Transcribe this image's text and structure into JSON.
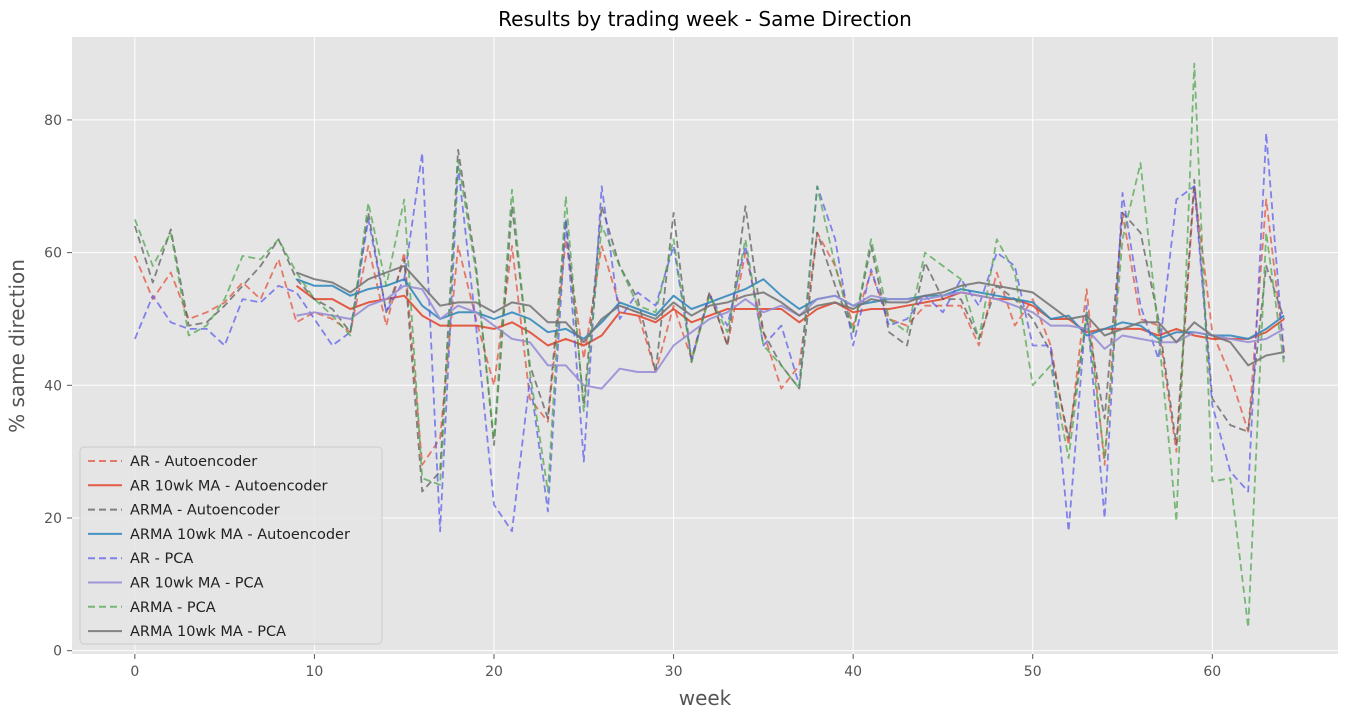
{
  "chart_data": {
    "type": "line",
    "title": "Results by trading week - Same Direction",
    "xlabel": "week",
    "ylabel": "% same direction",
    "xlim": [
      -3.5,
      67
    ],
    "ylim": [
      -0.5,
      92.5
    ],
    "xticks": [
      0,
      10,
      20,
      30,
      40,
      50,
      60
    ],
    "yticks": [
      0,
      20,
      40,
      60,
      80
    ],
    "grid": true,
    "legend_position": "lower-left",
    "series": [
      {
        "name": "AR - Autoencoder",
        "style": "dashed",
        "color": "#e24a33",
        "x": [
          0,
          1,
          2,
          3,
          4,
          5,
          6,
          7,
          8,
          9,
          10,
          11,
          12,
          13,
          14,
          15,
          16,
          17,
          18,
          19,
          20,
          21,
          22,
          23,
          24,
          25,
          26,
          27,
          28,
          29,
          30,
          31,
          32,
          33,
          34,
          35,
          36,
          37,
          38,
          39,
          40,
          41,
          42,
          43,
          44,
          45,
          46,
          47,
          48,
          49,
          50,
          51,
          52,
          53,
          54,
          55,
          56,
          57,
          58,
          59,
          60,
          61,
          62,
          63,
          64
        ],
        "values": [
          59.5,
          53,
          57,
          50,
          51,
          52.5,
          55.5,
          53,
          59,
          49.5,
          51,
          50,
          48,
          61,
          49,
          60,
          28,
          32,
          61,
          50,
          40,
          61,
          38,
          34.5,
          62,
          44,
          61,
          52,
          51,
          42,
          52,
          44,
          54,
          46,
          60,
          48,
          39.5,
          43,
          63,
          58,
          49,
          57,
          50,
          49,
          52,
          52,
          52,
          46,
          57,
          49,
          53,
          46,
          31,
          54.5,
          28,
          66,
          50,
          49,
          30,
          70,
          48,
          41.5,
          33,
          68,
          45
        ]
      },
      {
        "name": "AR 10wk MA - Autoencoder",
        "style": "solid",
        "color": "#e24a33",
        "x": [
          9,
          10,
          11,
          12,
          13,
          14,
          15,
          16,
          17,
          18,
          19,
          20,
          21,
          22,
          23,
          24,
          25,
          26,
          27,
          28,
          29,
          30,
          31,
          32,
          33,
          34,
          35,
          36,
          37,
          38,
          39,
          40,
          41,
          42,
          43,
          44,
          45,
          46,
          47,
          48,
          49,
          50,
          51,
          52,
          53,
          54,
          55,
          56,
          57,
          58,
          59,
          60,
          61,
          62,
          63,
          64
        ],
        "values": [
          55,
          53,
          53,
          51.5,
          52.5,
          53,
          53.5,
          50.5,
          49,
          49,
          49,
          48.5,
          49.5,
          48,
          46,
          47,
          46,
          47.5,
          51,
          50.5,
          49.5,
          51.5,
          49.5,
          50.5,
          51.5,
          51.5,
          51.5,
          51.5,
          49.5,
          51.5,
          52.5,
          51,
          51.5,
          51.5,
          52,
          52.5,
          53,
          54,
          53.5,
          53,
          53,
          52,
          50,
          50,
          48,
          48.5,
          48.5,
          48.5,
          47.5,
          48.5,
          47.5,
          47,
          47,
          47,
          48,
          50
        ]
      },
      {
        "name": "ARMA - Autoencoder",
        "style": "dashed",
        "color": "#555555",
        "x": [
          0,
          1,
          2,
          3,
          4,
          5,
          6,
          7,
          8,
          9,
          10,
          11,
          12,
          13,
          14,
          15,
          16,
          17,
          18,
          19,
          20,
          21,
          22,
          23,
          24,
          25,
          26,
          27,
          28,
          29,
          30,
          31,
          32,
          33,
          34,
          35,
          36,
          37,
          38,
          39,
          40,
          41,
          42,
          43,
          44,
          45,
          46,
          47,
          48,
          49,
          50,
          51,
          52,
          53,
          54,
          55,
          56,
          57,
          58,
          59,
          60,
          61,
          62,
          63,
          64
        ],
        "values": [
          64,
          55.5,
          63.5,
          49,
          49.5,
          52,
          55,
          58,
          62,
          56,
          53,
          51.5,
          48,
          66,
          51,
          59,
          24,
          27,
          75.5,
          58,
          31,
          67,
          43,
          35,
          65,
          37,
          67,
          58,
          53,
          42,
          66,
          43.5,
          54,
          46,
          67,
          48,
          43,
          39.5,
          63,
          55,
          48,
          61,
          48,
          46,
          58.5,
          53,
          53,
          47,
          55,
          53,
          50,
          45,
          32,
          50,
          35,
          66,
          63,
          50,
          31,
          71,
          38,
          34,
          33,
          58,
          50
        ]
      },
      {
        "name": "ARMA 10wk MA - Autoencoder",
        "style": "solid",
        "color": "#348abd",
        "x": [
          9,
          10,
          11,
          12,
          13,
          14,
          15,
          16,
          17,
          18,
          19,
          20,
          21,
          22,
          23,
          24,
          25,
          26,
          27,
          28,
          29,
          30,
          31,
          32,
          33,
          34,
          35,
          36,
          37,
          38,
          39,
          40,
          41,
          42,
          43,
          44,
          45,
          46,
          47,
          48,
          49,
          50,
          51,
          52,
          53,
          54,
          55,
          56,
          57,
          58,
          59,
          60,
          61,
          62,
          63,
          64
        ],
        "values": [
          56,
          55,
          55,
          53.5,
          54.5,
          55,
          56,
          52,
          50,
          51,
          51,
          50,
          51,
          50,
          48,
          48.5,
          47,
          49.5,
          52.5,
          51.5,
          50.5,
          53.5,
          51.5,
          52.5,
          53.5,
          54.5,
          56,
          53.5,
          51.5,
          53,
          53.5,
          52,
          52.5,
          53,
          53,
          53.5,
          53.5,
          54.5,
          54,
          53.5,
          53,
          52.5,
          50,
          50.5,
          47.5,
          48.5,
          49.5,
          49,
          47,
          48,
          48,
          47.5,
          47.5,
          47,
          48.5,
          50.5
        ]
      },
      {
        "name": "AR - PCA",
        "style": "dashed",
        "color": "#5555ee",
        "x": [
          0,
          1,
          2,
          3,
          4,
          5,
          6,
          7,
          8,
          9,
          10,
          11,
          12,
          13,
          14,
          15,
          16,
          17,
          18,
          19,
          20,
          21,
          22,
          23,
          24,
          25,
          26,
          27,
          28,
          29,
          30,
          31,
          32,
          33,
          34,
          35,
          36,
          37,
          38,
          39,
          40,
          41,
          42,
          43,
          44,
          45,
          46,
          47,
          48,
          49,
          50,
          51,
          52,
          53,
          54,
          55,
          56,
          57,
          58,
          59,
          60,
          61,
          62,
          63,
          64
        ],
        "values": [
          47,
          53.5,
          49.5,
          48.5,
          48.5,
          46,
          53,
          52.5,
          55,
          54,
          50,
          46,
          48,
          65,
          51,
          56,
          75,
          18,
          73,
          49,
          22,
          18,
          41,
          21,
          65,
          28.5,
          70,
          50,
          54,
          52,
          61,
          44,
          53.5,
          49,
          61,
          46,
          49,
          40,
          70,
          62,
          46,
          57.5,
          49,
          50,
          53.5,
          51,
          56,
          52,
          60,
          58,
          46,
          46,
          18,
          52,
          20,
          69,
          52,
          44,
          68,
          70,
          37,
          27,
          24,
          78,
          44
        ]
      },
      {
        "name": "AR 10wk MA - PCA",
        "style": "solid",
        "color": "#988ed5",
        "x": [
          9,
          10,
          11,
          12,
          13,
          14,
          15,
          16,
          17,
          18,
          19,
          20,
          21,
          22,
          23,
          24,
          25,
          26,
          27,
          28,
          29,
          30,
          31,
          32,
          33,
          34,
          35,
          36,
          37,
          38,
          39,
          40,
          41,
          42,
          43,
          44,
          45,
          46,
          47,
          48,
          49,
          50,
          51,
          52,
          53,
          54,
          55,
          56,
          57,
          58,
          59,
          60,
          61,
          62,
          63,
          64
        ],
        "values": [
          50.5,
          51,
          50.5,
          50,
          52,
          53,
          55,
          54.5,
          50,
          52,
          51,
          49,
          47,
          46.5,
          43,
          43,
          40,
          39.5,
          42.5,
          42,
          42,
          46,
          48,
          50,
          51,
          53,
          51,
          52,
          50.5,
          53,
          53.5,
          52,
          53.5,
          53,
          53,
          53,
          53.5,
          54,
          53.5,
          53,
          52,
          51,
          49,
          49,
          48.5,
          45.5,
          47.5,
          47,
          46.5,
          46.5,
          48,
          47.5,
          47,
          46.5,
          47,
          48.5
        ]
      },
      {
        "name": "ARMA - PCA",
        "style": "dashed",
        "color": "#47a447",
        "x": [
          0,
          1,
          2,
          3,
          4,
          5,
          6,
          7,
          8,
          9,
          10,
          11,
          12,
          13,
          14,
          15,
          16,
          17,
          18,
          19,
          20,
          21,
          22,
          23,
          24,
          25,
          26,
          27,
          28,
          29,
          30,
          31,
          32,
          33,
          34,
          35,
          36,
          37,
          38,
          39,
          40,
          41,
          42,
          43,
          44,
          45,
          46,
          47,
          48,
          49,
          50,
          51,
          52,
          53,
          54,
          55,
          56,
          57,
          58,
          59,
          60,
          61,
          62,
          63,
          64
        ],
        "values": [
          65,
          58,
          63,
          47.5,
          49,
          53,
          59.5,
          59,
          62,
          57,
          53,
          50.5,
          47.5,
          67.5,
          55,
          68,
          26,
          25,
          74,
          57,
          32,
          69.5,
          42,
          24,
          68.5,
          36,
          64,
          58,
          52,
          51,
          62,
          43.5,
          53.5,
          48,
          62,
          46,
          43,
          39.5,
          70,
          58,
          48,
          62,
          50,
          48,
          60,
          58,
          56,
          47,
          62,
          57,
          40,
          43,
          29,
          51,
          29,
          62,
          73.5,
          48,
          19.5,
          88.5,
          25.5,
          26,
          3.5,
          63,
          43
        ]
      },
      {
        "name": "ARMA 10wk MA - PCA",
        "style": "solid",
        "color": "#777777",
        "x": [
          9,
          10,
          11,
          12,
          13,
          14,
          15,
          16,
          17,
          18,
          19,
          20,
          21,
          22,
          23,
          24,
          25,
          26,
          27,
          28,
          29,
          30,
          31,
          32,
          33,
          34,
          35,
          36,
          37,
          38,
          39,
          40,
          41,
          42,
          43,
          44,
          45,
          46,
          47,
          48,
          49,
          50,
          51,
          52,
          53,
          54,
          55,
          56,
          57,
          58,
          59,
          60,
          61,
          62,
          63,
          64
        ],
        "values": [
          57,
          56,
          55.5,
          54,
          56,
          57,
          58,
          55,
          52,
          52.5,
          52.5,
          51,
          52.5,
          52,
          49.5,
          49.5,
          46.5,
          50,
          52,
          51,
          50,
          52.5,
          50.5,
          52,
          52.5,
          53.5,
          54,
          52.5,
          50.5,
          52,
          52.5,
          51.5,
          53,
          52.5,
          52.5,
          53.5,
          54,
          55,
          55.5,
          55,
          54.5,
          54,
          52,
          50,
          50.5,
          47.5,
          48.5,
          49.5,
          49.5,
          46.5,
          49.5,
          47.5,
          46.5,
          43,
          44.5,
          45
        ]
      }
    ]
  }
}
